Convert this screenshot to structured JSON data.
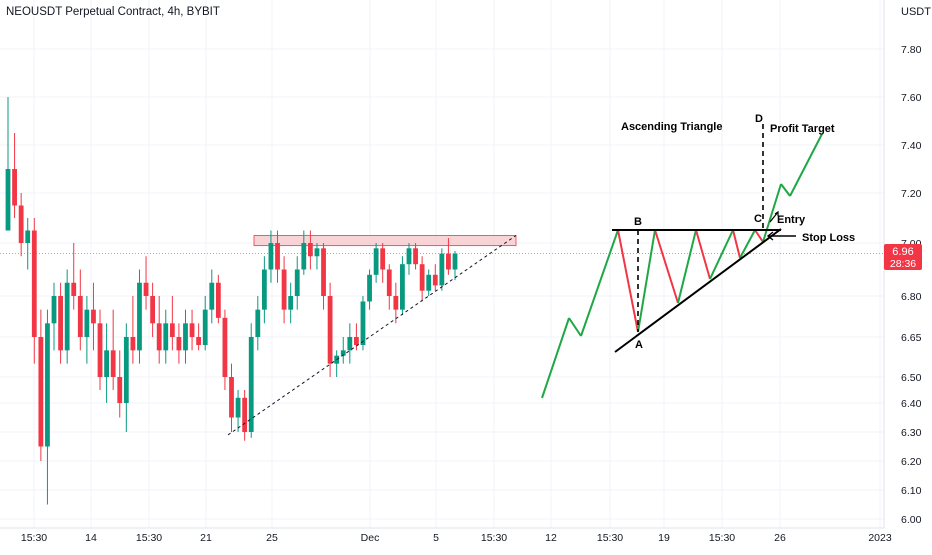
{
  "header": {
    "title": "NEOUSDT Perpetual Contract, 4h, BYBIT",
    "unit": "USDT"
  },
  "price_tag": {
    "value": "6.96",
    "countdown": "28:36",
    "color": "#f23645"
  },
  "colors": {
    "up": "#089981",
    "down": "#f23645",
    "grid": "#f0f3fa",
    "resistance_fill": "#f7c6c9",
    "resistance_border": "#f23645",
    "schematic_green": "#1ea845",
    "schematic_red": "#f23645",
    "schematic_black": "#000000"
  },
  "annotations": {
    "pattern_name": "Ascending Triangle",
    "profit_target": "Profit Target",
    "entry": "Entry",
    "stop_loss": "Stop Loss",
    "point_a": "A",
    "point_b": "B",
    "point_c": "C",
    "point_d": "D"
  },
  "chart_data": {
    "type": "candlestick",
    "title": "NEOUSDT Perpetual Contract, 4h, BYBIT",
    "ylabel": "USDT",
    "ylim": [
      6.0,
      7.95
    ],
    "yticks": [
      "7.80",
      "7.60",
      "7.40",
      "7.20",
      "7.00",
      "6.80",
      "6.65",
      "6.50",
      "6.40",
      "6.30",
      "6.20",
      "6.10",
      "6.00"
    ],
    "xticks": [
      "15:30",
      "14",
      "15:30",
      "21",
      "25",
      "Dec",
      "5",
      "15:30",
      "12",
      "15:30",
      "19",
      "15:30",
      "26",
      "2023"
    ],
    "last_price": 6.96,
    "resistance_zone": [
      6.99,
      7.03
    ],
    "candles_ohlc": [
      [
        7.05,
        7.6,
        7.1,
        7.3
      ],
      [
        7.3,
        7.45,
        7.1,
        7.15
      ],
      [
        7.15,
        7.2,
        6.95,
        7.0
      ],
      [
        7.0,
        7.1,
        6.9,
        7.05
      ],
      [
        7.05,
        7.1,
        6.55,
        6.65
      ],
      [
        6.65,
        6.75,
        6.2,
        6.25
      ],
      [
        6.25,
        6.75,
        6.05,
        6.7
      ],
      [
        6.7,
        6.85,
        6.6,
        6.8
      ],
      [
        6.8,
        6.85,
        6.55,
        6.6
      ],
      [
        6.6,
        6.9,
        6.55,
        6.85
      ],
      [
        6.85,
        7.0,
        6.75,
        6.8
      ],
      [
        6.8,
        6.9,
        6.6,
        6.65
      ],
      [
        6.65,
        6.8,
        6.55,
        6.75
      ],
      [
        6.75,
        6.85,
        6.6,
        6.7
      ],
      [
        6.7,
        6.75,
        6.45,
        6.5
      ],
      [
        6.5,
        6.7,
        6.4,
        6.6
      ],
      [
        6.6,
        6.75,
        6.45,
        6.5
      ],
      [
        6.5,
        6.6,
        6.35,
        6.4
      ],
      [
        6.4,
        6.7,
        6.3,
        6.65
      ],
      [
        6.65,
        6.8,
        6.55,
        6.6
      ],
      [
        6.6,
        6.9,
        6.55,
        6.85
      ],
      [
        6.85,
        6.95,
        6.75,
        6.8
      ],
      [
        6.8,
        6.85,
        6.65,
        6.7
      ],
      [
        6.7,
        6.8,
        6.55,
        6.6
      ],
      [
        6.6,
        6.75,
        6.55,
        6.7
      ],
      [
        6.7,
        6.8,
        6.6,
        6.65
      ],
      [
        6.65,
        6.7,
        6.55,
        6.6
      ],
      [
        6.6,
        6.75,
        6.55,
        6.7
      ],
      [
        6.7,
        6.75,
        6.6,
        6.65
      ],
      [
        6.65,
        6.7,
        6.6,
        6.62
      ],
      [
        6.62,
        6.8,
        6.6,
        6.75
      ],
      [
        6.75,
        6.9,
        6.7,
        6.85
      ],
      [
        6.85,
        6.88,
        6.7,
        6.72
      ],
      [
        6.72,
        6.75,
        6.45,
        6.5
      ],
      [
        6.5,
        6.55,
        6.3,
        6.35
      ],
      [
        6.35,
        6.45,
        6.3,
        6.42
      ],
      [
        6.42,
        6.45,
        6.27,
        6.3
      ],
      [
        6.3,
        6.7,
        6.28,
        6.65
      ],
      [
        6.65,
        6.8,
        6.6,
        6.75
      ],
      [
        6.75,
        6.95,
        6.7,
        6.9
      ],
      [
        6.9,
        7.05,
        6.85,
        7.0
      ],
      [
        7.0,
        7.05,
        6.85,
        6.9
      ],
      [
        6.9,
        6.95,
        6.7,
        6.75
      ],
      [
        6.75,
        6.85,
        6.7,
        6.8
      ],
      [
        6.8,
        6.95,
        6.75,
        6.9
      ],
      [
        6.9,
        7.05,
        6.88,
        7.0
      ],
      [
        7.0,
        7.05,
        6.9,
        6.95
      ],
      [
        6.95,
        7.0,
        6.9,
        6.98
      ],
      [
        6.98,
        7.0,
        6.75,
        6.8
      ],
      [
        6.8,
        6.85,
        6.5,
        6.55
      ],
      [
        6.55,
        6.6,
        6.5,
        6.58
      ],
      [
        6.58,
        6.65,
        6.55,
        6.6
      ],
      [
        6.6,
        6.7,
        6.55,
        6.65
      ],
      [
        6.65,
        6.7,
        6.6,
        6.62
      ],
      [
        6.62,
        6.8,
        6.6,
        6.78
      ],
      [
        6.78,
        6.9,
        6.75,
        6.88
      ],
      [
        6.88,
        7.0,
        6.85,
        6.98
      ],
      [
        6.98,
        7.0,
        6.85,
        6.9
      ],
      [
        6.9,
        6.92,
        6.75,
        6.8
      ],
      [
        6.8,
        6.85,
        6.7,
        6.75
      ],
      [
        6.75,
        6.95,
        6.73,
        6.92
      ],
      [
        6.92,
        7.0,
        6.88,
        6.98
      ],
      [
        6.98,
        7.0,
        6.9,
        6.92
      ],
      [
        6.92,
        6.95,
        6.78,
        6.82
      ],
      [
        6.82,
        6.9,
        6.8,
        6.88
      ],
      [
        6.88,
        6.92,
        6.82,
        6.84
      ],
      [
        6.84,
        6.98,
        6.82,
        6.96
      ],
      [
        6.96,
        7.02,
        6.88,
        6.9
      ],
      [
        6.9,
        6.97,
        6.86,
        6.96
      ]
    ]
  }
}
